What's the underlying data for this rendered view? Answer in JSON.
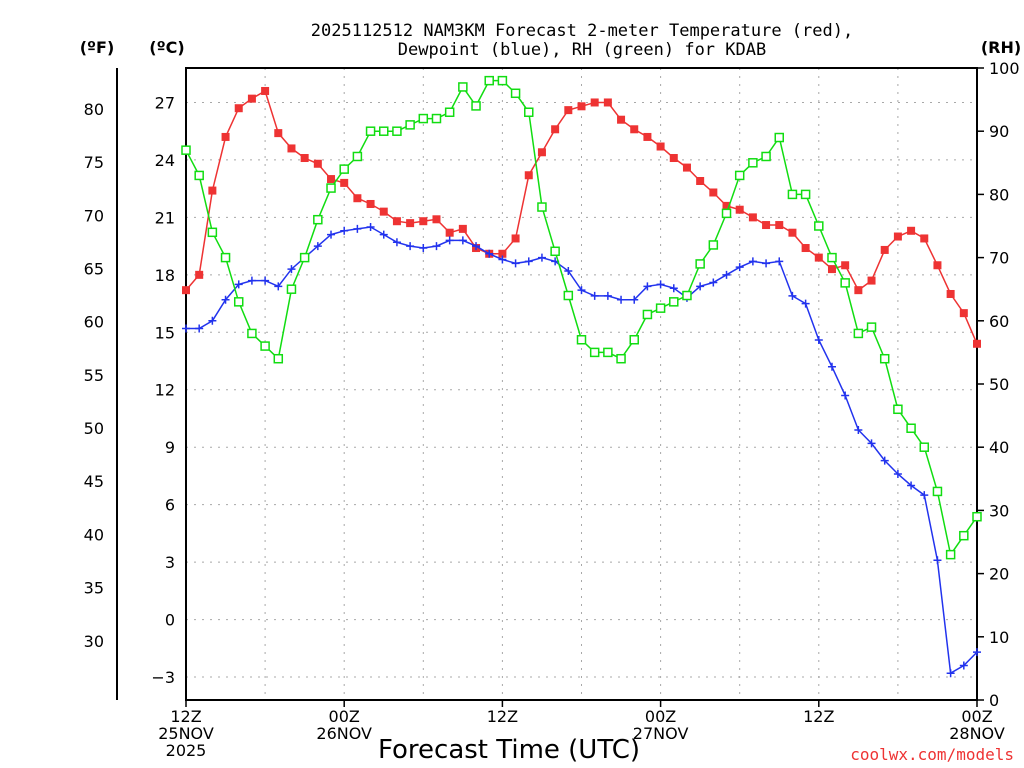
{
  "chart_data": {
    "type": "line",
    "title_line1": "2025112512 NAM3KM Forecast 2-meter Temperature (red),",
    "title_line2": "Dewpoint (blue), RH (green) for KDAB",
    "xlabel": "Forecast Time (UTC)",
    "watermark": "coolwx.com/models",
    "unit_labels": {
      "f": "(ºF)",
      "c": "(ºC)",
      "rh": "(RH)"
    },
    "x_range_hours": [
      0,
      60
    ],
    "c_range": [
      -4.2,
      28.8
    ],
    "rh_range": [
      0,
      100
    ],
    "f_ticks": [
      30,
      35,
      40,
      45,
      50,
      55,
      60,
      65,
      70,
      75,
      80
    ],
    "c_ticks": [
      -3,
      0,
      3,
      6,
      9,
      12,
      15,
      18,
      21,
      24,
      27
    ],
    "rh_ticks": [
      0,
      10,
      20,
      30,
      40,
      50,
      60,
      70,
      80,
      90,
      100
    ],
    "x_ticks": [
      {
        "hour": 0,
        "lines": [
          "12Z",
          "25NOV",
          "2025"
        ]
      },
      {
        "hour": 12,
        "lines": [
          "00Z",
          "26NOV"
        ]
      },
      {
        "hour": 24,
        "lines": [
          "12Z"
        ]
      },
      {
        "hour": 36,
        "lines": [
          "00Z",
          "27NOV"
        ]
      },
      {
        "hour": 48,
        "lines": [
          "12Z"
        ]
      },
      {
        "hour": 60,
        "lines": [
          "00Z",
          "28NOV"
        ]
      }
    ],
    "x_hours": [
      0,
      1,
      2,
      3,
      4,
      5,
      6,
      7,
      8,
      9,
      10,
      11,
      12,
      13,
      14,
      15,
      16,
      17,
      18,
      19,
      20,
      21,
      22,
      23,
      24,
      25,
      26,
      27,
      28,
      29,
      30,
      31,
      32,
      33,
      34,
      35,
      36,
      37,
      38,
      39,
      40,
      41,
      42,
      43,
      44,
      45,
      46,
      47,
      48,
      49,
      50,
      51,
      52,
      53,
      54,
      55,
      56,
      57,
      58,
      59,
      60
    ],
    "series": [
      {
        "name": "Temperature (red)",
        "unit": "C",
        "color": "#ee3333",
        "marker": "filled-square",
        "values": [
          17.2,
          18.0,
          22.4,
          25.2,
          26.7,
          27.2,
          27.6,
          25.4,
          24.6,
          24.1,
          23.8,
          23.0,
          22.8,
          22.0,
          21.7,
          21.3,
          20.8,
          20.7,
          20.8,
          20.9,
          20.2,
          20.4,
          19.4,
          19.1,
          19.1,
          19.9,
          23.2,
          24.4,
          25.6,
          26.6,
          26.8,
          27.0,
          27.0,
          26.1,
          25.6,
          25.2,
          24.7,
          24.1,
          23.6,
          22.9,
          22.3,
          21.6,
          21.4,
          21.0,
          20.6,
          20.6,
          20.2,
          19.4,
          18.9,
          18.3,
          18.5,
          17.2,
          17.7,
          19.3,
          20.0,
          20.3,
          19.9,
          18.5,
          17.0,
          16.0,
          14.4
        ]
      },
      {
        "name": "Dewpoint (blue)",
        "unit": "C",
        "color": "#2233ee",
        "marker": "plus",
        "values": [
          15.2,
          15.2,
          15.6,
          16.7,
          17.5,
          17.7,
          17.7,
          17.4,
          18.3,
          18.9,
          19.5,
          20.1,
          20.3,
          20.4,
          20.5,
          20.1,
          19.7,
          19.5,
          19.4,
          19.5,
          19.8,
          19.8,
          19.5,
          19.1,
          18.8,
          18.6,
          18.7,
          18.9,
          18.7,
          18.2,
          17.2,
          16.9,
          16.9,
          16.7,
          16.7,
          17.4,
          17.5,
          17.3,
          16.8,
          17.4,
          17.6,
          18.0,
          18.4,
          18.7,
          18.6,
          18.7,
          16.9,
          16.5,
          14.6,
          13.2,
          11.7,
          9.9,
          9.2,
          8.3,
          7.6,
          7.0,
          6.5,
          3.1,
          -2.8,
          -2.4,
          -1.7
        ]
      },
      {
        "name": "RH (green)",
        "unit": "%",
        "color": "#11dd11",
        "marker": "open-square",
        "values": [
          87,
          83,
          74,
          70,
          63,
          58,
          56,
          54,
          65,
          70,
          76,
          81,
          84,
          86,
          90,
          90,
          90,
          91,
          92,
          92,
          93,
          97,
          94,
          98,
          98,
          96,
          93,
          78,
          71,
          64,
          57,
          55,
          55,
          54,
          57,
          61,
          62,
          63,
          64,
          69,
          72,
          77,
          83,
          85,
          86,
          89,
          80,
          80,
          75,
          70,
          66,
          58,
          59,
          54,
          46,
          43,
          40,
          33,
          23,
          26,
          29
        ]
      }
    ]
  }
}
